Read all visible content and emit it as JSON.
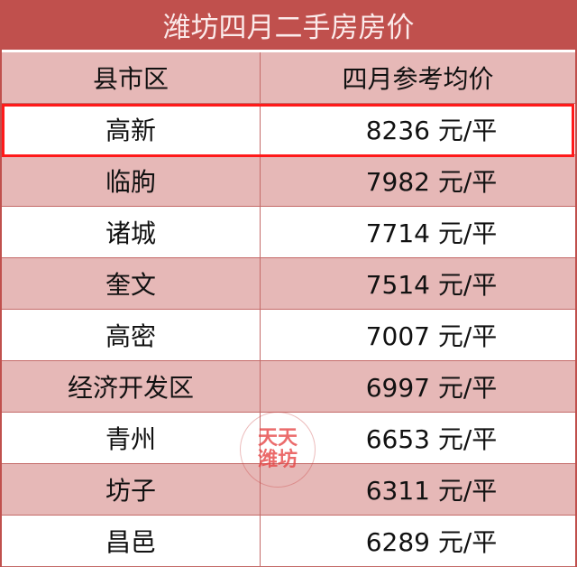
{
  "title": "潍坊四月二手房房价",
  "headers": [
    "县市区",
    "四月参考均价"
  ],
  "highlight_color": "#ff0000",
  "header_color": "#c0504d",
  "rows": [
    {
      "district": "高新",
      "price": "8236 元/平"
    },
    {
      "district": "临朐",
      "price": "7982 元/平"
    },
    {
      "district": "诸城",
      "price": "7714 元/平"
    },
    {
      "district": "奎文",
      "price": "7514 元/平"
    },
    {
      "district": "高密",
      "price": "7007 元/平"
    },
    {
      "district": "经济开发区",
      "price": "6997 元/平"
    },
    {
      "district": "青州",
      "price": "6653 元/平"
    },
    {
      "district": "坊子",
      "price": "6311 元/平"
    },
    {
      "district": "昌邑",
      "price": "6289 元/平"
    }
  ],
  "watermark": "天天潍坊"
}
